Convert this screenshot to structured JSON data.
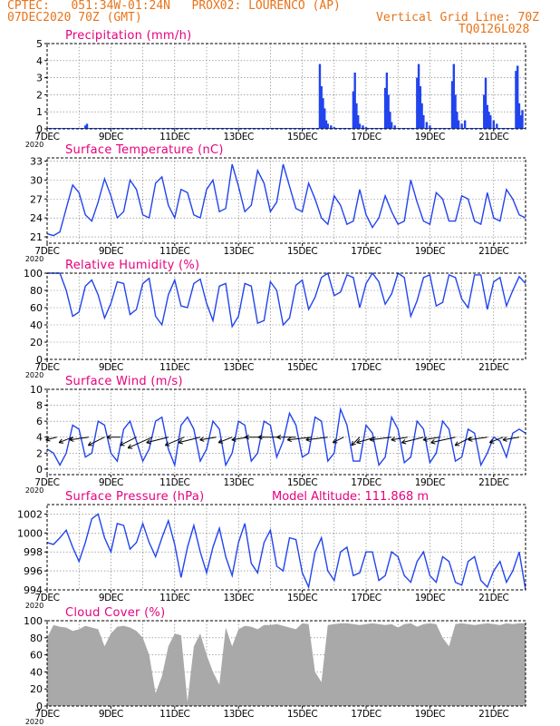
{
  "header": {
    "line1": "CPTEC:   051:34W-01:24N   PROX02: LOURENCO (AP)",
    "line2_left": "07DEC2020 70Z (GMT)",
    "line2_right": "Vertical Grid Line: 70Z",
    "line3_right": "TQ0126L028"
  },
  "colors": {
    "header": "#e8731a",
    "title": "#e6007e",
    "line": "#2244ee",
    "cloud": "#a9a9a9"
  },
  "chart_data": [
    {
      "id": "precip",
      "type": "bar",
      "title": "Precipitation (mm/h)",
      "x_axis": {
        "start_day": 7,
        "end_day": 22,
        "tick_labels": [
          "7DEC",
          "9DEC",
          "11DEC",
          "13DEC",
          "15DEC",
          "17DEC",
          "19DEC",
          "21DEC"
        ],
        "corner_label": "2020"
      },
      "ylim": [
        0,
        5
      ],
      "yticks": [
        0,
        1,
        2,
        3,
        4,
        5
      ],
      "x_days": [
        8.2,
        8.25,
        15.55,
        15.6,
        15.65,
        15.7,
        15.75,
        15.8,
        15.9,
        16.0,
        16.6,
        16.65,
        16.7,
        16.75,
        16.8,
        16.9,
        17.0,
        17.6,
        17.65,
        17.7,
        17.75,
        17.8,
        17.9,
        18.6,
        18.65,
        18.7,
        18.75,
        18.8,
        18.9,
        19.0,
        19.7,
        19.75,
        19.8,
        19.85,
        19.9,
        20.0,
        20.1,
        20.7,
        20.75,
        20.8,
        20.85,
        20.9,
        21.0,
        21.1,
        21.7,
        21.75,
        21.8,
        21.85,
        21.9
      ],
      "values": [
        0.2,
        0.3,
        3.8,
        2.5,
        1.8,
        1.2,
        0.5,
        0.3,
        0.2,
        0.1,
        2.2,
        3.3,
        1.5,
        0.8,
        0.3,
        0.2,
        0.1,
        2.4,
        3.3,
        2.0,
        1.0,
        0.4,
        0.2,
        3.0,
        3.8,
        2.5,
        1.5,
        0.8,
        0.4,
        0.2,
        2.8,
        3.8,
        2.0,
        1.0,
        0.5,
        0.3,
        0.5,
        2.0,
        3.0,
        1.4,
        1.0,
        0.8,
        0.5,
        0.3,
        3.4,
        3.7,
        1.5,
        0.8,
        1.1
      ]
    },
    {
      "id": "temp",
      "type": "line",
      "title": "Surface Temperature (nC)",
      "x_axis": {
        "start_day": 7,
        "end_day": 22,
        "tick_labels": [
          "7DEC",
          "9DEC",
          "11DEC",
          "13DEC",
          "15DEC",
          "17DEC",
          "19DEC",
          "21DEC"
        ],
        "corner_label": "2020"
      },
      "ylim": [
        20,
        33.5
      ],
      "yticks": [
        21,
        24,
        27,
        30,
        33
      ],
      "x_days": [
        7.0,
        7.2,
        7.4,
        7.6,
        7.8,
        8.0,
        8.2,
        8.4,
        8.6,
        8.8,
        9.0,
        9.2,
        9.4,
        9.6,
        9.8,
        10.0,
        10.2,
        10.4,
        10.6,
        10.8,
        11.0,
        11.2,
        11.4,
        11.6,
        11.8,
        12.0,
        12.2,
        12.4,
        12.6,
        12.8,
        13.0,
        13.2,
        13.4,
        13.6,
        13.8,
        14.0,
        14.2,
        14.4,
        14.6,
        14.8,
        15.0,
        15.2,
        15.4,
        15.6,
        15.8,
        16.0,
        16.2,
        16.4,
        16.6,
        16.8,
        17.0,
        17.2,
        17.4,
        17.6,
        17.8,
        18.0,
        18.2,
        18.4,
        18.6,
        18.8,
        19.0,
        19.2,
        19.4,
        19.6,
        19.8,
        20.0,
        20.2,
        20.4,
        20.6,
        20.8,
        21.0,
        21.2,
        21.4,
        21.6,
        21.8,
        22.0
      ],
      "values": [
        21.5,
        21.2,
        21.8,
        25.5,
        29.2,
        28.0,
        24.5,
        23.5,
        26.5,
        30.2,
        27.5,
        24.0,
        25.0,
        30.0,
        28.5,
        24.5,
        24.0,
        29.5,
        30.5,
        26.0,
        24.0,
        28.5,
        28.0,
        24.5,
        24.0,
        28.5,
        30.0,
        25.0,
        25.5,
        32.5,
        29.0,
        25.0,
        26.0,
        31.5,
        29.5,
        25.0,
        26.5,
        32.5,
        29.0,
        25.5,
        25.0,
        29.5,
        27.0,
        24.0,
        23.0,
        27.5,
        26.0,
        23.0,
        23.5,
        28.5,
        24.5,
        22.5,
        24.0,
        27.5,
        25.0,
        23.0,
        23.5,
        30.0,
        26.5,
        23.5,
        23.0,
        28.0,
        27.0,
        23.5,
        23.5,
        27.5,
        27.0,
        23.5,
        23.0,
        28.0,
        24.0,
        23.5,
        28.5,
        27.0,
        24.5,
        24.0
      ]
    },
    {
      "id": "rh",
      "type": "line",
      "title": "Relative Humidity (%)",
      "x_axis": {
        "start_day": 7,
        "end_day": 22,
        "tick_labels": [
          "7DEC",
          "9DEC",
          "11DEC",
          "13DEC",
          "15DEC",
          "17DEC",
          "19DEC",
          "21DEC"
        ],
        "corner_label": "2020"
      },
      "ylim": [
        0,
        100
      ],
      "yticks": [
        0,
        20,
        40,
        60,
        80,
        100
      ],
      "x_days": [
        7.0,
        7.2,
        7.4,
        7.6,
        7.8,
        8.0,
        8.2,
        8.4,
        8.6,
        8.8,
        9.0,
        9.2,
        9.4,
        9.6,
        9.8,
        10.0,
        10.2,
        10.4,
        10.6,
        10.8,
        11.0,
        11.2,
        11.4,
        11.6,
        11.8,
        12.0,
        12.2,
        12.4,
        12.6,
        12.8,
        13.0,
        13.2,
        13.4,
        13.6,
        13.8,
        14.0,
        14.2,
        14.4,
        14.6,
        14.8,
        15.0,
        15.2,
        15.4,
        15.6,
        15.8,
        16.0,
        16.2,
        16.4,
        16.6,
        16.8,
        17.0,
        17.2,
        17.4,
        17.6,
        17.8,
        18.0,
        18.2,
        18.4,
        18.6,
        18.8,
        19.0,
        19.2,
        19.4,
        19.6,
        19.8,
        20.0,
        20.2,
        20.4,
        20.6,
        20.8,
        21.0,
        21.2,
        21.4,
        21.6,
        21.8,
        22.0
      ],
      "values": [
        100,
        100,
        100,
        80,
        50,
        55,
        85,
        92,
        75,
        48,
        65,
        90,
        88,
        52,
        58,
        88,
        94,
        50,
        40,
        75,
        92,
        62,
        60,
        88,
        93,
        65,
        45,
        85,
        88,
        38,
        50,
        88,
        85,
        42,
        45,
        90,
        80,
        40,
        48,
        86,
        92,
        58,
        72,
        95,
        100,
        74,
        78,
        98,
        95,
        60,
        88,
        100,
        90,
        64,
        76,
        100,
        95,
        50,
        68,
        95,
        98,
        62,
        66,
        98,
        95,
        70,
        60,
        98,
        98,
        58,
        90,
        95,
        62,
        80,
        96,
        88
      ]
    },
    {
      "id": "wind",
      "type": "line",
      "title": "Surface Wind (m/s)",
      "x_axis": {
        "start_day": 7,
        "end_day": 22,
        "tick_labels": [
          "7DEC",
          "9DEC",
          "11DEC",
          "13DEC",
          "15DEC",
          "17DEC",
          "19DEC",
          "21DEC"
        ],
        "corner_label": "2020"
      },
      "ylim": [
        -0.7,
        10
      ],
      "yticks": [
        0,
        2,
        4,
        6,
        8,
        10
      ],
      "x_days": [
        7.0,
        7.2,
        7.4,
        7.6,
        7.8,
        8.0,
        8.2,
        8.4,
        8.6,
        8.8,
        9.0,
        9.2,
        9.4,
        9.6,
        9.8,
        10.0,
        10.2,
        10.4,
        10.6,
        10.8,
        11.0,
        11.2,
        11.4,
        11.6,
        11.8,
        12.0,
        12.2,
        12.4,
        12.6,
        12.8,
        13.0,
        13.2,
        13.4,
        13.6,
        13.8,
        14.0,
        14.2,
        14.4,
        14.6,
        14.8,
        15.0,
        15.2,
        15.4,
        15.6,
        15.8,
        16.0,
        16.2,
        16.4,
        16.6,
        16.8,
        17.0,
        17.2,
        17.4,
        17.6,
        17.8,
        18.0,
        18.2,
        18.4,
        18.6,
        18.8,
        19.0,
        19.2,
        19.4,
        19.6,
        19.8,
        20.0,
        20.2,
        20.4,
        20.6,
        20.8,
        21.0,
        21.2,
        21.4,
        21.6,
        21.8,
        22.0
      ],
      "values": [
        2.5,
        2.0,
        0.5,
        2.0,
        5.5,
        5.0,
        1.5,
        2.0,
        6.0,
        5.5,
        2.0,
        1.0,
        5.0,
        6.0,
        3.5,
        1.0,
        2.5,
        6.0,
        6.5,
        2.5,
        0.5,
        5.5,
        6.5,
        5.0,
        1.0,
        2.5,
        6.0,
        5.0,
        0.5,
        2.0,
        6.0,
        5.5,
        1.0,
        2.0,
        6.0,
        5.5,
        1.5,
        3.5,
        7.0,
        5.5,
        1.5,
        2.0,
        6.5,
        6.0,
        1.0,
        2.0,
        7.5,
        5.5,
        1.0,
        1.0,
        5.5,
        4.5,
        0.5,
        1.5,
        6.5,
        5.0,
        0.8,
        1.5,
        6.0,
        5.0,
        0.8,
        2.0,
        6.0,
        5.0,
        1.0,
        1.5,
        5.0,
        4.5,
        0.5,
        2.0,
        4.0,
        3.5,
        1.5,
        4.5,
        5.0,
        4.5
      ],
      "vectors": {
        "x_days": [
          7.3,
          7.8,
          8.3,
          8.8,
          9.3,
          9.8,
          10.3,
          10.8,
          11.3,
          11.8,
          12.3,
          12.8,
          13.3,
          13.8,
          14.3,
          14.8,
          15.3,
          15.8,
          16.3,
          16.8,
          17.3,
          17.8,
          18.3,
          18.8,
          19.3,
          19.8,
          20.3,
          20.8,
          21.3,
          21.8
        ],
        "u": [
          -2.0,
          -2.5,
          -3.5,
          -3.0,
          -2.5,
          -3.0,
          -4.5,
          -4.0,
          -3.5,
          -4.0,
          -3.0,
          -2.5,
          -3.0,
          -3.5,
          -4.0,
          -3.5,
          -4.5,
          -4.0,
          -2.0,
          -1.5,
          -3.5,
          -4.0,
          -3.0,
          -4.0,
          -3.0,
          -4.5,
          -3.0,
          -3.5,
          -2.5,
          -3.0
        ],
        "v": [
          -0.5,
          -1.0,
          -0.5,
          -1.5,
          0.0,
          -1.5,
          -2.0,
          -1.0,
          -1.5,
          -1.0,
          -0.5,
          -1.0,
          -0.5,
          0.0,
          0.0,
          0.0,
          -0.5,
          -0.5,
          -1.0,
          -1.5,
          -1.0,
          -0.5,
          -0.5,
          -1.0,
          -0.5,
          -1.0,
          -1.5,
          -0.5,
          -1.0,
          -0.5
        ]
      }
    },
    {
      "id": "pres",
      "type": "line",
      "title": "Surface Pressure (hPa)",
      "subtitle": "Model Altitude: 111.868  m",
      "x_axis": {
        "start_day": 7,
        "end_day": 22,
        "tick_labels": [
          "7DEC",
          "9DEC",
          "11DEC",
          "13DEC",
          "15DEC",
          "17DEC",
          "19DEC",
          "21DEC"
        ],
        "corner_label": "2020"
      },
      "ylim": [
        994,
        1003
      ],
      "yticks": [
        994,
        996,
        998,
        1000,
        1002
      ],
      "x_days": [
        7.0,
        7.2,
        7.4,
        7.6,
        7.8,
        8.0,
        8.2,
        8.4,
        8.6,
        8.8,
        9.0,
        9.2,
        9.4,
        9.6,
        9.8,
        10.0,
        10.2,
        10.4,
        10.6,
        10.8,
        11.0,
        11.2,
        11.4,
        11.6,
        11.8,
        12.0,
        12.2,
        12.4,
        12.6,
        12.8,
        13.0,
        13.2,
        13.4,
        13.6,
        13.8,
        14.0,
        14.2,
        14.4,
        14.6,
        14.8,
        15.0,
        15.2,
        15.4,
        15.6,
        15.8,
        16.0,
        16.2,
        16.4,
        16.6,
        16.8,
        17.0,
        17.2,
        17.4,
        17.6,
        17.8,
        18.0,
        18.2,
        18.4,
        18.6,
        18.8,
        19.0,
        19.2,
        19.4,
        19.6,
        19.8,
        20.0,
        20.2,
        20.4,
        20.6,
        20.8,
        21.0,
        21.2,
        21.4,
        21.6,
        21.8,
        22.0
      ],
      "values": [
        999.0,
        998.8,
        999.5,
        1000.3,
        998.5,
        997.0,
        999.0,
        1001.5,
        1002.0,
        999.5,
        998.0,
        1001.0,
        1000.8,
        998.3,
        999.0,
        1001.0,
        999.0,
        997.5,
        999.5,
        1001.3,
        998.8,
        995.3,
        998.5,
        1000.8,
        998.0,
        995.8,
        998.5,
        1000.5,
        997.5,
        995.5,
        999.0,
        1001.0,
        996.8,
        995.8,
        999.0,
        1000.3,
        996.5,
        996.0,
        999.5,
        999.3,
        995.8,
        994.3,
        998.0,
        999.5,
        996.0,
        995.0,
        998.0,
        998.5,
        995.5,
        995.8,
        998.0,
        998.0,
        995.0,
        995.5,
        998.0,
        997.5,
        995.5,
        994.8,
        997.0,
        998.0,
        995.5,
        994.8,
        997.5,
        997.0,
        994.8,
        994.5,
        997.0,
        997.5,
        995.0,
        994.3,
        996.0,
        997.0,
        994.8,
        996.0,
        998.0,
        994.0
      ]
    },
    {
      "id": "cloud",
      "type": "bar",
      "title": "Cloud Cover (%)",
      "x_axis": {
        "start_day": 7,
        "end_day": 22,
        "tick_labels": [
          "7DEC",
          "9DEC",
          "11DEC",
          "13DEC",
          "15DEC",
          "17DEC",
          "19DEC",
          "21DEC"
        ],
        "corner_label": "2020"
      },
      "ylim": [
        0,
        100
      ],
      "yticks": [
        0,
        20,
        40,
        60,
        80,
        100
      ],
      "x_days": [
        7.0,
        7.2,
        7.4,
        7.6,
        7.8,
        8.0,
        8.2,
        8.4,
        8.6,
        8.8,
        9.0,
        9.2,
        9.4,
        9.6,
        9.8,
        10.0,
        10.2,
        10.4,
        10.6,
        10.8,
        11.0,
        11.2,
        11.4,
        11.6,
        11.8,
        12.0,
        12.2,
        12.4,
        12.6,
        12.8,
        13.0,
        13.2,
        13.4,
        13.6,
        13.8,
        14.0,
        14.2,
        14.4,
        14.6,
        14.8,
        15.0,
        15.2,
        15.4,
        15.6,
        15.8,
        16.0,
        16.2,
        16.4,
        16.6,
        16.8,
        17.0,
        17.2,
        17.4,
        17.6,
        17.8,
        18.0,
        18.2,
        18.4,
        18.6,
        18.8,
        19.0,
        19.2,
        19.4,
        19.6,
        19.8,
        20.0,
        20.2,
        20.4,
        20.6,
        20.8,
        21.0,
        21.2,
        21.4,
        21.6,
        21.8,
        22.0
      ],
      "values": [
        80,
        95,
        93,
        92,
        88,
        90,
        94,
        92,
        90,
        70,
        85,
        93,
        94,
        92,
        88,
        80,
        60,
        15,
        35,
        70,
        85,
        83,
        5,
        70,
        85,
        60,
        40,
        25,
        92,
        70,
        90,
        94,
        93,
        90,
        95,
        95,
        96,
        94,
        92,
        90,
        97,
        96,
        40,
        28,
        95,
        96,
        97,
        97,
        96,
        95,
        96,
        97,
        96,
        95,
        96,
        92,
        96,
        97,
        93,
        96,
        97,
        96,
        80,
        70,
        96,
        97,
        96,
        95,
        96,
        97,
        96,
        95,
        97,
        96,
        97,
        97
      ]
    }
  ]
}
